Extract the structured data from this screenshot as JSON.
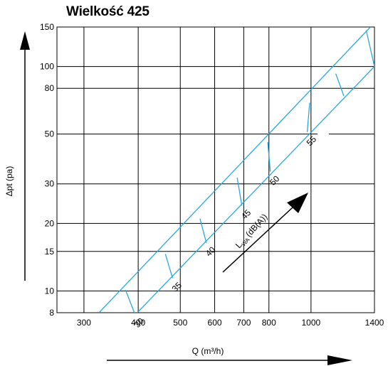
{
  "title": "Wielkość 425",
  "chart_data": {
    "type": "line",
    "title": "Wielkość 425",
    "xlabel": "Q (m³/h)",
    "ylabel": "Δpt (pa)",
    "xscale": "log",
    "yscale": "log",
    "xlim": [
      260,
      1400
    ],
    "ylim": [
      8,
      150
    ],
    "grid": true,
    "xticks": [
      300,
      400,
      500,
      600,
      700,
      800,
      1000,
      1400
    ],
    "yticks": [
      8,
      10,
      15,
      20,
      30,
      50,
      80,
      100,
      150
    ],
    "x_tick_labels": [
      "300",
      "400",
      "500",
      "600",
      "700",
      "800",
      "1000",
      "1400"
    ],
    "y_tick_labels": [
      "8",
      "10",
      "15",
      "20",
      "30",
      "50",
      "80",
      "100",
      "150"
    ],
    "line_color": "#29a8e0",
    "series": [
      {
        "x": [
          325,
          1370
        ],
        "y": [
          8,
          150
        ]
      },
      {
        "x": [
          398,
          1400
        ],
        "y": [
          8,
          100
        ]
      }
    ],
    "sound_level_name": "L",
    "sound_level_subscript": "WA",
    "sound_level_unit": "(dB(A))",
    "sound_levels": [
      {
        "label": "30",
        "x_upper": 374,
        "y_upper": 10.1,
        "x_lower": 393,
        "y_lower": 7.9
      },
      {
        "label": "35",
        "x_upper": 462,
        "y_upper": 14.6,
        "x_lower": 480,
        "y_lower": 11.4
      },
      {
        "label": "40",
        "x_upper": 555,
        "y_upper": 21.0,
        "x_lower": 574,
        "y_lower": 16.4
      },
      {
        "label": "45",
        "x_upper": 676,
        "y_upper": 32.0,
        "x_lower": 693,
        "y_lower": 24.0
      },
      {
        "label": "50",
        "x_upper": 795,
        "y_upper": 46.0,
        "x_lower": 806,
        "y_lower": 34.0
      },
      {
        "label": "55",
        "x_upper": 993,
        "y_upper": 69.0,
        "x_lower": 980,
        "y_lower": 51.0
      },
      {
        "label": "",
        "x_upper": 1140,
        "y_upper": 93.0,
        "x_lower": 1190,
        "y_lower": 74.0
      },
      {
        "label": "",
        "x_upper": 1340,
        "y_upper": 145.0,
        "x_lower": 1400,
        "y_lower": 100.0
      }
    ]
  }
}
